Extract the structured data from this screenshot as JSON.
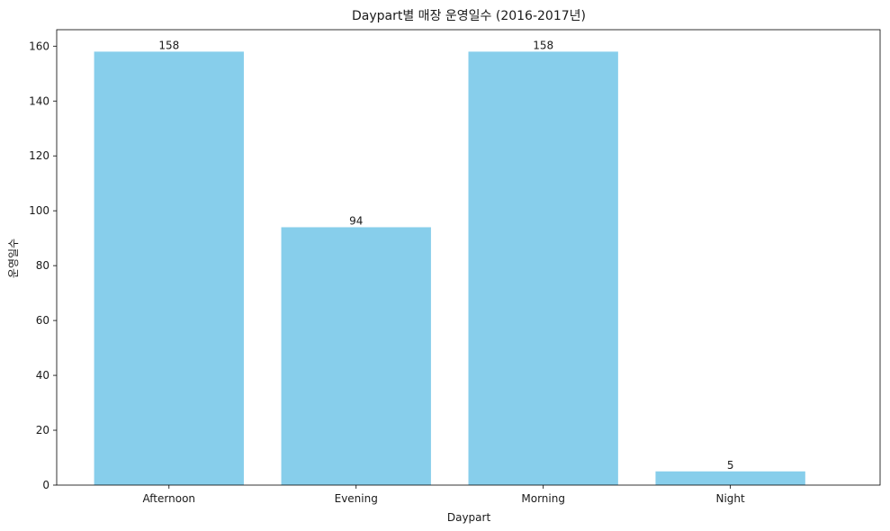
{
  "chart_data": {
    "type": "bar",
    "title": "Daypart별 매장 운영일수 (2016-2017년)",
    "xlabel": "Daypart",
    "ylabel": "운영일수",
    "categories": [
      "Afternoon",
      "Evening",
      "Morning",
      "Night"
    ],
    "values": [
      158,
      94,
      158,
      5
    ],
    "data_labels": [
      "158",
      "94",
      "158",
      "5"
    ],
    "ylim": [
      0,
      166
    ],
    "yticks": [
      0,
      20,
      40,
      60,
      80,
      100,
      120,
      140,
      160
    ],
    "grid": false,
    "legend": "none",
    "bar_color": "#87CEEB"
  }
}
